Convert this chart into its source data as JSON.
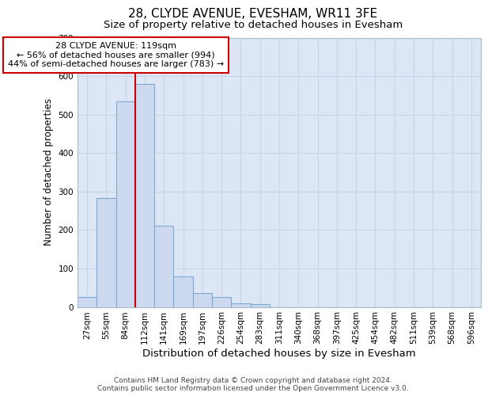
{
  "title": "28, CLYDE AVENUE, EVESHAM, WR11 3FE",
  "subtitle": "Size of property relative to detached houses in Evesham",
  "xlabel": "Distribution of detached houses by size in Evesham",
  "ylabel": "Number of detached properties",
  "footnote1": "Contains HM Land Registry data © Crown copyright and database right 2024.",
  "footnote2": "Contains public sector information licensed under the Open Government Licence v3.0.",
  "categories": [
    "27sqm",
    "55sqm",
    "84sqm",
    "112sqm",
    "141sqm",
    "169sqm",
    "197sqm",
    "226sqm",
    "254sqm",
    "283sqm",
    "311sqm",
    "340sqm",
    "368sqm",
    "397sqm",
    "425sqm",
    "454sqm",
    "482sqm",
    "511sqm",
    "539sqm",
    "568sqm",
    "596sqm"
  ],
  "bar_heights": [
    25,
    283,
    535,
    580,
    212,
    80,
    37,
    25,
    10,
    8,
    0,
    0,
    0,
    0,
    0,
    0,
    0,
    0,
    0,
    0,
    0
  ],
  "bar_color": "#cdd9ee",
  "bar_edge_color": "#7baad4",
  "grid_color": "#c8d4e8",
  "background_color": "#ffffff",
  "plot_bg_color": "#dce6f5",
  "red_line_color": "#cc0000",
  "annotation_box_text": "28 CLYDE AVENUE: 119sqm\n← 56% of detached houses are smaller (994)\n44% of semi-detached houses are larger (783) →",
  "ylim": [
    0,
    700
  ],
  "yticks": [
    0,
    100,
    200,
    300,
    400,
    500,
    600,
    700
  ],
  "title_fontsize": 11,
  "subtitle_fontsize": 9.5,
  "xlabel_fontsize": 9.5,
  "ylabel_fontsize": 8.5,
  "tick_fontsize": 7.5,
  "annot_fontsize": 8,
  "footnote_fontsize": 6.5
}
